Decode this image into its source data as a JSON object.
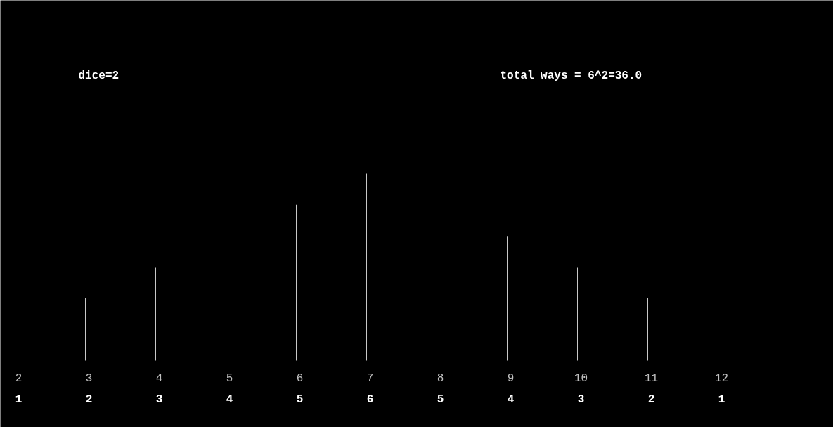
{
  "chart_data": {
    "type": "bar",
    "title": "dice=2",
    "annotations": [
      "total ways = 6^2=36.0"
    ],
    "categories": [
      "2",
      "3",
      "4",
      "5",
      "6",
      "7",
      "8",
      "9",
      "10",
      "11",
      "12"
    ],
    "values": [
      1,
      2,
      3,
      4,
      5,
      6,
      5,
      4,
      3,
      2,
      1
    ],
    "color": "#c8c8c8",
    "data_labels": true,
    "grid": false
  }
}
